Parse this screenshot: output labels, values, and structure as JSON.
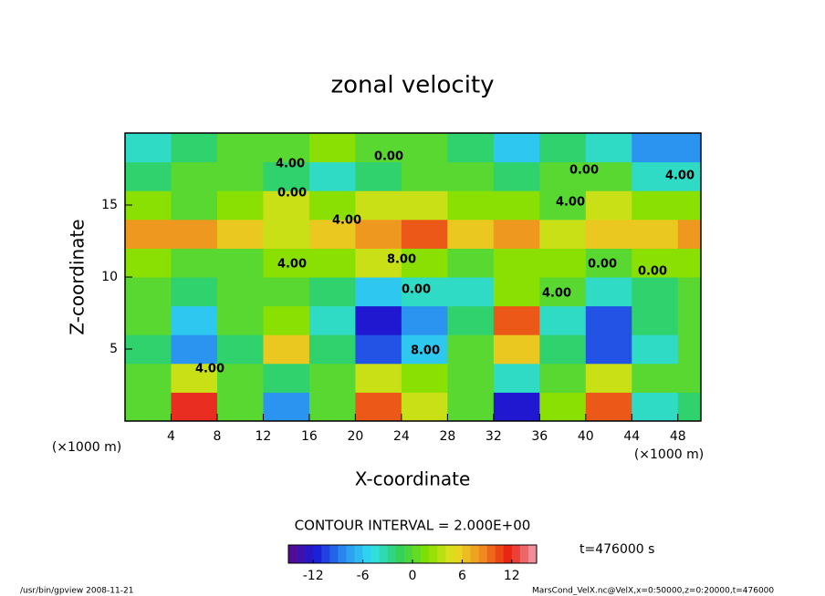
{
  "chart_data": {
    "type": "contour",
    "title": "zonal velocity",
    "x_label": "X-coordinate",
    "y_label": "Z-coordinate",
    "x_unit_label": "(×1000 m)",
    "y_unit_label": "(×1000 m)",
    "x": [
      2,
      6,
      10,
      14,
      18,
      22,
      26,
      30,
      34,
      38,
      42,
      46,
      50
    ],
    "z": [
      1,
      3,
      5,
      7,
      9,
      11,
      13,
      15,
      17,
      19
    ],
    "values": [
      [
        0,
        12,
        0,
        -8,
        0,
        10,
        4,
        0,
        -12,
        2,
        10,
        -4,
        -2
      ],
      [
        0,
        4,
        0,
        -2,
        0,
        4,
        2,
        0,
        -4,
        0,
        4,
        0,
        0
      ],
      [
        -2,
        -8,
        -2,
        6,
        -2,
        -10,
        -6,
        0,
        6,
        -2,
        -10,
        -4,
        0
      ],
      [
        0,
        -6,
        0,
        2,
        -4,
        -12,
        -8,
        -2,
        10,
        -4,
        -10,
        -2,
        0
      ],
      [
        0,
        -2,
        0,
        0,
        -2,
        -6,
        -4,
        -4,
        2,
        0,
        -4,
        -2,
        0
      ],
      [
        2,
        0,
        0,
        2,
        2,
        4,
        2,
        0,
        2,
        2,
        0,
        2,
        2
      ],
      [
        8,
        8,
        6,
        4,
        6,
        8,
        10,
        6,
        8,
        4,
        6,
        6,
        8
      ],
      [
        2,
        0,
        2,
        4,
        2,
        4,
        4,
        2,
        2,
        0,
        4,
        2,
        2
      ],
      [
        -2,
        0,
        0,
        -2,
        -4,
        -2,
        0,
        0,
        -2,
        0,
        0,
        -4,
        -4
      ],
      [
        -4,
        -2,
        0,
        0,
        2,
        0,
        0,
        -2,
        -6,
        -2,
        -4,
        -8,
        -8
      ]
    ],
    "xlim": [
      0,
      50
    ],
    "ylim": [
      0,
      20
    ],
    "xticks": [
      4,
      8,
      12,
      16,
      20,
      24,
      28,
      32,
      36,
      40,
      44,
      48
    ],
    "yticks": [
      5,
      10,
      15
    ],
    "contour_labels": [
      "4.00",
      "0.00",
      "0.00",
      "4.00",
      "4.00",
      "8.00",
      "0.00",
      "4.00",
      "8.00",
      "0.00",
      "4.00",
      "0.00",
      "4.00",
      "0.00",
      "4.00"
    ],
    "contour_interval_label": "CONTOUR INTERVAL = 2.000E+00",
    "colormap": [
      "#5a0a8c",
      "#1a1ad8",
      "#2a8cf0",
      "#30e0f0",
      "#30d060",
      "#80e000",
      "#e8e020",
      "#f09020",
      "#e82010",
      "#f0a0b0"
    ],
    "clim": [
      -15,
      15
    ],
    "cticks": [
      -12,
      -6,
      0,
      6,
      12
    ],
    "time_label": "t=476000 s",
    "footer_left": "/usr/bin/gpview  2008-11-21",
    "footer_right": "MarsCond_VelX.nc@VelX,x=0:50000,z=0:20000,t=476000"
  }
}
